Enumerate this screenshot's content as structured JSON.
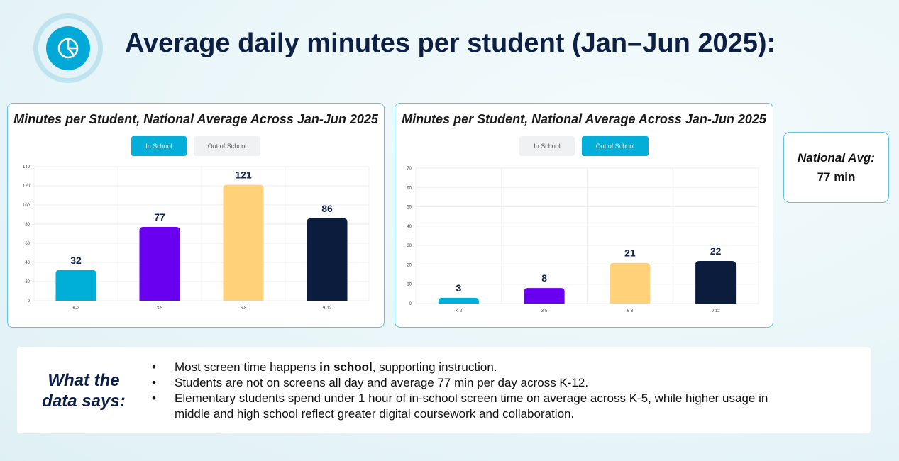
{
  "header": {
    "title": "Average daily minutes per student (Jan–Jun 2025):",
    "icon": "pie-chart-icon"
  },
  "colors": {
    "accent": "#03afd8",
    "navy": "#0d1f45",
    "bars": [
      "#00afd6",
      "#6a00f0",
      "#ffd27a",
      "#0c1c3c"
    ]
  },
  "chart_data": [
    {
      "type": "bar",
      "title": "Minutes per Student, National Average Across Jan-Jun 2025",
      "toggles": [
        "In School",
        "Out of School"
      ],
      "active_toggle": "In School",
      "categories": [
        "K-2",
        "3-5",
        "6-8",
        "9-12"
      ],
      "values": [
        32,
        77,
        121,
        86
      ],
      "data_labels": [
        "32",
        "77",
        "121",
        "86"
      ],
      "ylim": [
        0,
        140
      ],
      "yticks": [
        "0",
        "20",
        "40",
        "60",
        "80",
        "100",
        "120",
        "140"
      ],
      "grid": true
    },
    {
      "type": "bar",
      "title": "Minutes per Student, National Average Across Jan-Jun 2025",
      "toggles": [
        "In School",
        "Out of School"
      ],
      "active_toggle": "Out of School",
      "categories": [
        "K-2",
        "3-5",
        "6-8",
        "9-12"
      ],
      "values": [
        3,
        8,
        21,
        22
      ],
      "data_labels": [
        "3",
        "8",
        "21",
        "22"
      ],
      "ylim": [
        0,
        70
      ],
      "yticks": [
        "0",
        "10",
        "20",
        "30",
        "40",
        "50",
        "60",
        "70"
      ],
      "grid": true
    }
  ],
  "national_avg": {
    "label": "National Avg:",
    "value": "77 min"
  },
  "data_says": {
    "label_line1": "What the",
    "label_line2": "data says:",
    "bullets": [
      {
        "before": "Most screen time happens ",
        "bold": "in school",
        "after": ", supporting instruction."
      },
      {
        "before": "Students are not on screens all day and average 77 min per day across K-12.",
        "bold": "",
        "after": ""
      },
      {
        "before": "Elementary students spend under 1 hour of in-school screen time on average across K-5, while higher usage in middle and high school reflect greater digital coursework and collaboration.",
        "bold": "",
        "after": ""
      }
    ]
  }
}
